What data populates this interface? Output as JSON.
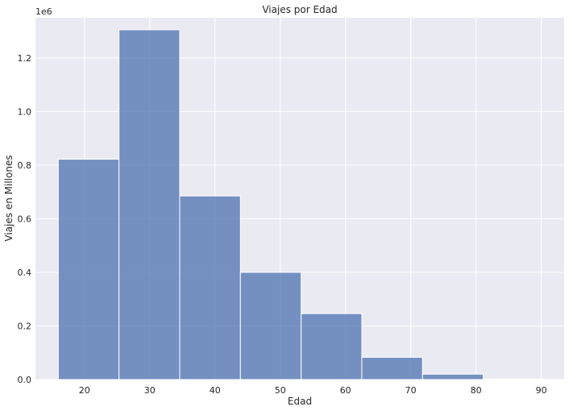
{
  "chart_data": {
    "type": "bar",
    "title": "Viajes por Edad",
    "xlabel": "Edad",
    "ylabel": "Viajes en Millones",
    "y_offset_label": "1e6",
    "x_ticks": [
      "20",
      "30",
      "40",
      "50",
      "60",
      "70",
      "80",
      "90"
    ],
    "y_ticks": [
      "0.0",
      "0.2",
      "0.4",
      "0.6",
      "0.8",
      "1.0",
      "1.2"
    ],
    "xlim": [
      12.5,
      93.5
    ],
    "ylim": [
      0,
      1350000
    ],
    "bins": [
      {
        "x0": 16.0,
        "x1": 25.3,
        "value": 822000
      },
      {
        "x0": 25.3,
        "x1": 34.6,
        "value": 1305000
      },
      {
        "x0": 34.6,
        "x1": 43.9,
        "value": 685000
      },
      {
        "x0": 43.9,
        "x1": 53.2,
        "value": 400000
      },
      {
        "x0": 53.2,
        "x1": 62.5,
        "value": 246000
      },
      {
        "x0": 62.5,
        "x1": 71.8,
        "value": 83000
      },
      {
        "x0": 71.8,
        "x1": 81.1,
        "value": 20000
      },
      {
        "x0": 81.1,
        "x1": 90.4,
        "value": 2000
      }
    ],
    "grid": true,
    "bar_color": "#4c72b0",
    "background_color": "#eaeaf2"
  }
}
